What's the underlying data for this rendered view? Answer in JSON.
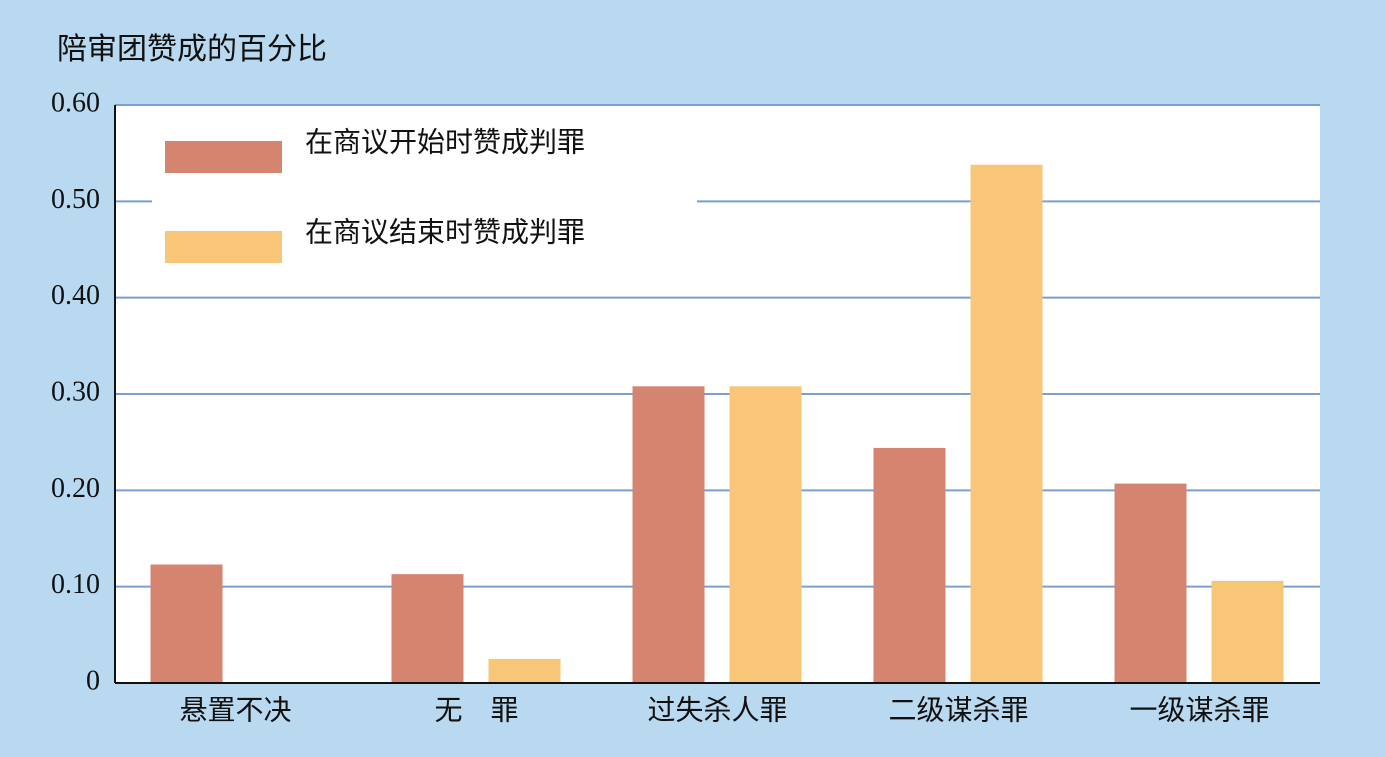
{
  "chart_data": {
    "type": "bar",
    "title": "陪审团赞成的百分比",
    "categories": [
      "悬置不决",
      "无　罪",
      "过失杀人罪",
      "二级谋杀罪",
      "一级谋杀罪"
    ],
    "series": [
      {
        "name": "在商议开始时赞成判罪",
        "color": "#d4846f",
        "values": [
          0.123,
          0.113,
          0.308,
          0.244,
          0.207
        ]
      },
      {
        "name": "在商议结束时赞成判罪",
        "color": "#f9c677",
        "values": [
          0,
          0.025,
          0.308,
          0.538,
          0.106
        ]
      }
    ],
    "ylim": [
      0,
      0.6
    ],
    "yticks": [
      0,
      {
        "value": 0.1,
        "label": "0.10"
      },
      {
        "value": 0.2,
        "label": "0.20"
      },
      {
        "value": 0.3,
        "label": "0.30"
      },
      {
        "value": 0.4,
        "label": "0.40"
      },
      {
        "value": 0.5,
        "label": "0.50"
      },
      {
        "value": 0.6,
        "label": "0.60"
      }
    ],
    "grid": true,
    "legend": "top-left"
  }
}
